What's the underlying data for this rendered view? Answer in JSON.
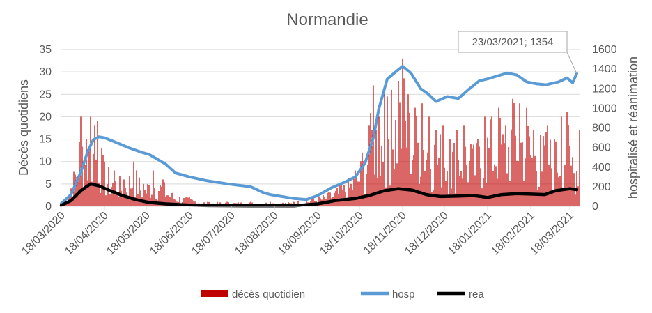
{
  "chart_data": {
    "type": "bar+line",
    "title": "Normandie",
    "ylabel_left": "Décès quotidiens",
    "ylabel_right": "hospitalisé et réanimation",
    "ylim_left": [
      0,
      35
    ],
    "ylim_right": [
      0,
      1600
    ],
    "left_ticks": [
      "0",
      "5",
      "10",
      "15",
      "20",
      "25",
      "30",
      "35"
    ],
    "right_ticks": [
      "0",
      "200",
      "400",
      "600",
      "800",
      "1000",
      "1200",
      "1400",
      "1600"
    ],
    "x_tick_labels": [
      "18/03/2020",
      "18/04/2020",
      "18/05/2020",
      "18/06/2020",
      "18/07/2020",
      "18/08/2020",
      "18/09/2020",
      "18/10/2020",
      "18/11/2020",
      "18/12/2020",
      "18/01/2021",
      "18/02/2021",
      "18/03/2021"
    ],
    "x_start": "18/03/2020",
    "x_end": "25/03/2021",
    "annotation": {
      "text": "23/03/2021; 1354",
      "date": "23/03/2021",
      "value": 1354
    },
    "series": [
      {
        "name": "décès quotidien",
        "kind": "bar",
        "axis": "left",
        "color": "#c00000",
        "points": [
          [
            "18/03/2020",
            1
          ],
          [
            "25/03/2020",
            4
          ],
          [
            "01/04/2020",
            20
          ],
          [
            "05/04/2020",
            15
          ],
          [
            "08/04/2020",
            20
          ],
          [
            "11/04/2020",
            18
          ],
          [
            "13/04/2020",
            19
          ],
          [
            "18/04/2020",
            10
          ],
          [
            "25/04/2020",
            8
          ],
          [
            "02/05/2020",
            6
          ],
          [
            "09/05/2020",
            10
          ],
          [
            "16/05/2020",
            5
          ],
          [
            "23/05/2020",
            8
          ],
          [
            "30/05/2020",
            6
          ],
          [
            "06/06/2020",
            3
          ],
          [
            "18/06/2020",
            2
          ],
          [
            "01/07/2020",
            1
          ],
          [
            "15/07/2020",
            1
          ],
          [
            "01/08/2020",
            1
          ],
          [
            "15/08/2020",
            1
          ],
          [
            "01/09/2020",
            1
          ],
          [
            "15/09/2020",
            2
          ],
          [
            "25/09/2020",
            3
          ],
          [
            "05/10/2020",
            5
          ],
          [
            "15/10/2020",
            8
          ],
          [
            "20/10/2020",
            12
          ],
          [
            "25/10/2020",
            18
          ],
          [
            "28/10/2020",
            27
          ],
          [
            "01/11/2020",
            20
          ],
          [
            "05/11/2020",
            25
          ],
          [
            "10/11/2020",
            26
          ],
          [
            "15/11/2020",
            28
          ],
          [
            "18/11/2020",
            33
          ],
          [
            "22/11/2020",
            25
          ],
          [
            "27/11/2020",
            22
          ],
          [
            "02/12/2020",
            23
          ],
          [
            "07/12/2020",
            20
          ],
          [
            "12/12/2020",
            17
          ],
          [
            "17/12/2020",
            18
          ],
          [
            "22/12/2020",
            15
          ],
          [
            "27/12/2020",
            17
          ],
          [
            "01/01/2021",
            18
          ],
          [
            "06/01/2021",
            14
          ],
          [
            "11/01/2021",
            15
          ],
          [
            "16/01/2021",
            20
          ],
          [
            "21/01/2021",
            20
          ],
          [
            "26/01/2021",
            22
          ],
          [
            "31/01/2021",
            18
          ],
          [
            "05/02/2021",
            24
          ],
          [
            "10/02/2021",
            23
          ],
          [
            "15/02/2021",
            22
          ],
          [
            "20/02/2021",
            17
          ],
          [
            "25/02/2021",
            16
          ],
          [
            "02/03/2021",
            18
          ],
          [
            "07/03/2021",
            15
          ],
          [
            "12/03/2021",
            20
          ],
          [
            "16/03/2021",
            21
          ],
          [
            "20/03/2021",
            11
          ],
          [
            "25/03/2021",
            17
          ]
        ]
      },
      {
        "name": "hosp",
        "kind": "line",
        "axis": "right",
        "color": "#5b9bd5",
        "points": [
          [
            "18/03/2020",
            30
          ],
          [
            "25/03/2020",
            120
          ],
          [
            "01/04/2020",
            350
          ],
          [
            "06/04/2020",
            560
          ],
          [
            "10/04/2020",
            680
          ],
          [
            "14/04/2020",
            710
          ],
          [
            "18/04/2020",
            700
          ],
          [
            "25/04/2020",
            660
          ],
          [
            "05/05/2020",
            600
          ],
          [
            "15/05/2020",
            550
          ],
          [
            "20/05/2020",
            530
          ],
          [
            "01/06/2020",
            430
          ],
          [
            "08/06/2020",
            340
          ],
          [
            "18/06/2020",
            300
          ],
          [
            "01/07/2020",
            260
          ],
          [
            "15/07/2020",
            230
          ],
          [
            "01/08/2020",
            200
          ],
          [
            "10/08/2020",
            140
          ],
          [
            "15/08/2020",
            120
          ],
          [
            "01/09/2020",
            80
          ],
          [
            "10/09/2020",
            70
          ],
          [
            "18/09/2020",
            110
          ],
          [
            "28/09/2020",
            190
          ],
          [
            "08/10/2020",
            250
          ],
          [
            "15/10/2020",
            300
          ],
          [
            "22/10/2020",
            440
          ],
          [
            "28/10/2020",
            700
          ],
          [
            "01/11/2020",
            1000
          ],
          [
            "07/11/2020",
            1300
          ],
          [
            "12/11/2020",
            1360
          ],
          [
            "18/11/2020",
            1430
          ],
          [
            "24/11/2020",
            1360
          ],
          [
            "01/12/2020",
            1200
          ],
          [
            "06/12/2020",
            1150
          ],
          [
            "12/12/2020",
            1070
          ],
          [
            "20/12/2020",
            1120
          ],
          [
            "28/12/2020",
            1100
          ],
          [
            "05/01/2021",
            1200
          ],
          [
            "12/01/2021",
            1280
          ],
          [
            "18/01/2021",
            1300
          ],
          [
            "25/01/2021",
            1330
          ],
          [
            "01/02/2021",
            1360
          ],
          [
            "08/02/2021",
            1340
          ],
          [
            "15/02/2021",
            1270
          ],
          [
            "22/02/2021",
            1250
          ],
          [
            "01/03/2021",
            1240
          ],
          [
            "10/03/2021",
            1270
          ],
          [
            "16/03/2021",
            1310
          ],
          [
            "20/03/2021",
            1260
          ],
          [
            "23/03/2021",
            1354
          ]
        ]
      },
      {
        "name": "rea",
        "kind": "line",
        "axis": "right",
        "color": "#000000",
        "points": [
          [
            "18/03/2020",
            10
          ],
          [
            "25/03/2020",
            60
          ],
          [
            "01/04/2020",
            160
          ],
          [
            "08/04/2020",
            230
          ],
          [
            "14/04/2020",
            210
          ],
          [
            "22/04/2020",
            160
          ],
          [
            "01/05/2020",
            110
          ],
          [
            "10/05/2020",
            70
          ],
          [
            "20/05/2020",
            40
          ],
          [
            "01/06/2020",
            25
          ],
          [
            "18/06/2020",
            12
          ],
          [
            "01/07/2020",
            8
          ],
          [
            "01/08/2020",
            5
          ],
          [
            "01/09/2020",
            6
          ],
          [
            "18/09/2020",
            25
          ],
          [
            "01/10/2020",
            60
          ],
          [
            "15/10/2020",
            80
          ],
          [
            "25/10/2020",
            110
          ],
          [
            "05/11/2020",
            160
          ],
          [
            "15/11/2020",
            180
          ],
          [
            "25/11/2020",
            165
          ],
          [
            "05/12/2020",
            120
          ],
          [
            "15/12/2020",
            100
          ],
          [
            "28/12/2020",
            105
          ],
          [
            "08/01/2021",
            110
          ],
          [
            "18/01/2021",
            90
          ],
          [
            "28/01/2021",
            120
          ],
          [
            "08/02/2021",
            130
          ],
          [
            "18/02/2021",
            125
          ],
          [
            "28/02/2021",
            120
          ],
          [
            "08/03/2021",
            160
          ],
          [
            "18/03/2021",
            180
          ],
          [
            "23/03/2021",
            170
          ]
        ]
      }
    ],
    "legend_position": "bottom",
    "grid": true
  }
}
